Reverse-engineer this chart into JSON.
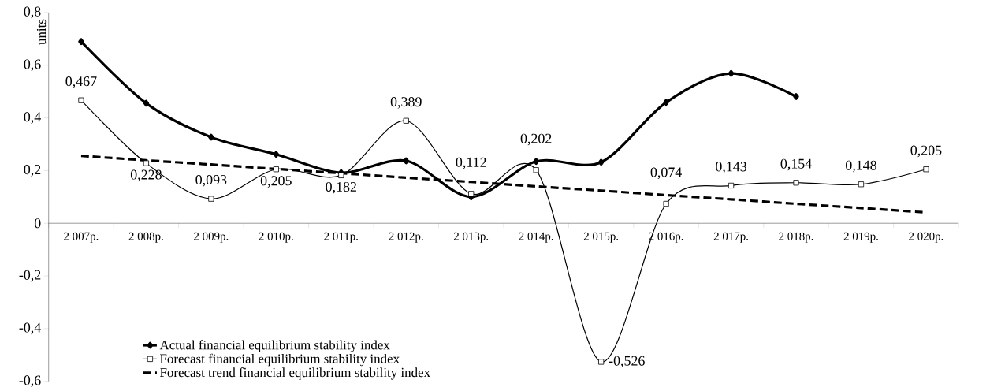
{
  "chart_data": {
    "type": "line",
    "ylabel": "units",
    "categories": [
      "2 007р.",
      "2 008р.",
      "2 009р.",
      "2 010р.",
      "2 011р.",
      "2 012р.",
      "2 013р.",
      "2 014р.",
      "2 015р.",
      "2 016р.",
      "2 017р.",
      "2 018р.",
      "2 019р.",
      "2 020р."
    ],
    "series": [
      {
        "name": "Actual financial equilibrium stability index",
        "color": "#000000",
        "marker": "diamond",
        "line_style": "solid",
        "values": [
          0.69,
          0.456,
          0.327,
          0.262,
          0.192,
          0.237,
          0.1,
          0.235,
          0.232,
          0.459,
          0.569,
          0.481,
          null,
          null
        ]
      },
      {
        "name": "Forecast financial equilibrium stability index",
        "color": "#000000",
        "marker": "square",
        "line_style": "solid",
        "values": [
          0.467,
          0.228,
          0.093,
          0.205,
          0.182,
          0.389,
          0.112,
          0.202,
          -0.526,
          0.074,
          0.143,
          0.154,
          0.148,
          0.205
        ],
        "value_labels": [
          "0,467",
          "0,228",
          "0,093",
          "0,205",
          "0,182",
          "0,389",
          "0,112",
          "0,202",
          "-0,526",
          "0,074",
          "0,143",
          "0,154",
          "0,148",
          "0,205"
        ]
      },
      {
        "name": "Forecast trend financial equilibrium stability index",
        "color": "#000000",
        "marker": "none",
        "line_style": "dashed",
        "values": [
          0.256,
          0.239,
          0.223,
          0.206,
          0.19,
          0.173,
          0.157,
          0.14,
          0.124,
          0.107,
          0.091,
          0.074,
          0.058,
          0.041
        ]
      }
    ],
    "ylim": [
      -0.6,
      0.8
    ],
    "yticks": [
      {
        "value": -0.6,
        "label": "-0,6"
      },
      {
        "value": -0.4,
        "label": "-0,4"
      },
      {
        "value": -0.2,
        "label": "-0,2"
      },
      {
        "value": 0,
        "label": "0"
      },
      {
        "value": 0.2,
        "label": "0,2"
      },
      {
        "value": 0.4,
        "label": "0,4"
      },
      {
        "value": 0.6,
        "label": "0,6"
      },
      {
        "value": 0.8,
        "label": "0,8"
      }
    ],
    "grid": false,
    "legend": "bottom left"
  }
}
